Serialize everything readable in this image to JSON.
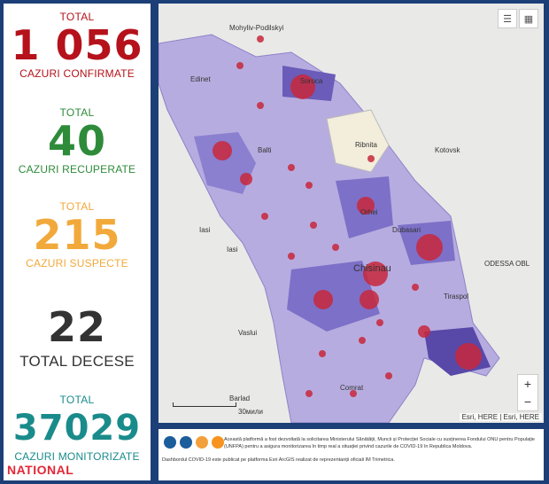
{
  "stats": {
    "confirmed": {
      "label": "TOTAL",
      "value": "1 056",
      "caption": "CAZURI CONFIRMATE",
      "color": "#b5121b"
    },
    "recovered": {
      "label": "TOTAL",
      "value": "40",
      "caption": "CAZURI RECUPERATE",
      "color": "#2e8b3a"
    },
    "suspect": {
      "label": "TOTAL",
      "value": "215",
      "caption": "CAZURI SUSPECTE",
      "color": "#f2a93b"
    },
    "deaths": {
      "label": "",
      "value": "22",
      "caption": "TOTAL DECESE",
      "color": "#333333"
    },
    "monitored": {
      "label": "TOTAL",
      "value": "37029",
      "caption": "CAZURI MONITORIZATE",
      "color": "#1a8b8b"
    }
  },
  "map": {
    "places": [
      "Mohyliv-Podilskyi",
      "Edinet",
      "Soroca",
      "Ribnita",
      "Kotovsk",
      "Balti",
      "Orhei",
      "Dubasari",
      "Iasi",
      "Chisinau",
      "Tiraspol",
      "ODESSA OBL",
      "Vaslui",
      "Barlad",
      "Comrat"
    ],
    "icons": [
      "list-icon",
      "qr-icon"
    ],
    "zoom_in": "+",
    "zoom_out": "−",
    "attribution": "Esri, HERE | Esri, HERE",
    "scale": "30мили"
  },
  "footer": {
    "text1": "Această platformă a fost dezvoltată la solicitarea Ministerului Sănătății, Muncii și Protecției Sociale cu susținerea Fondului ONU pentru Populație (UNFPA) pentru a asigura monitorizarea în timp real a situației privind cazurile de COVID-19 în Republica Moldova.",
    "text2": "Dashbordul COVID-19 este publicat pe platforma Esri ArcGIS realizat de reprezentanții oficiali IM Trimetrica."
  },
  "brand": "NATIONAL"
}
